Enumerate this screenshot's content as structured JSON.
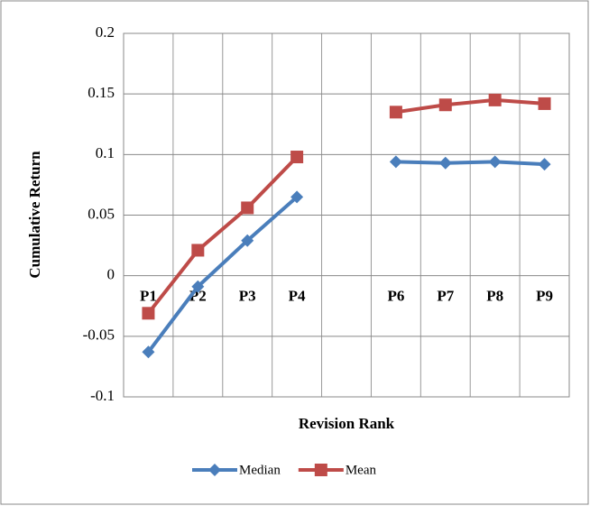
{
  "chart_data": {
    "type": "line",
    "x_label": "Revision Rank",
    "y_label": "Cumulative Return",
    "categories": [
      "P1",
      "P2",
      "P3",
      "P4",
      null,
      "P6",
      "P7",
      "P8",
      "P9"
    ],
    "series": [
      {
        "name": "Median",
        "color": "#4a7ebb",
        "marker": "diamond",
        "values": [
          -0.063,
          -0.009,
          0.029,
          0.065,
          null,
          0.094,
          0.093,
          0.094,
          0.092
        ]
      },
      {
        "name": "Mean",
        "color": "#be4b48",
        "marker": "square",
        "values": [
          -0.031,
          0.021,
          0.056,
          0.098,
          null,
          0.135,
          0.141,
          0.145,
          0.142
        ]
      }
    ],
    "ylim": [
      -0.1,
      0.2
    ],
    "yticks": [
      -0.1,
      -0.05,
      0,
      0.05,
      0.1,
      0.15,
      0.2
    ],
    "grid": true,
    "legend": "bottom"
  }
}
